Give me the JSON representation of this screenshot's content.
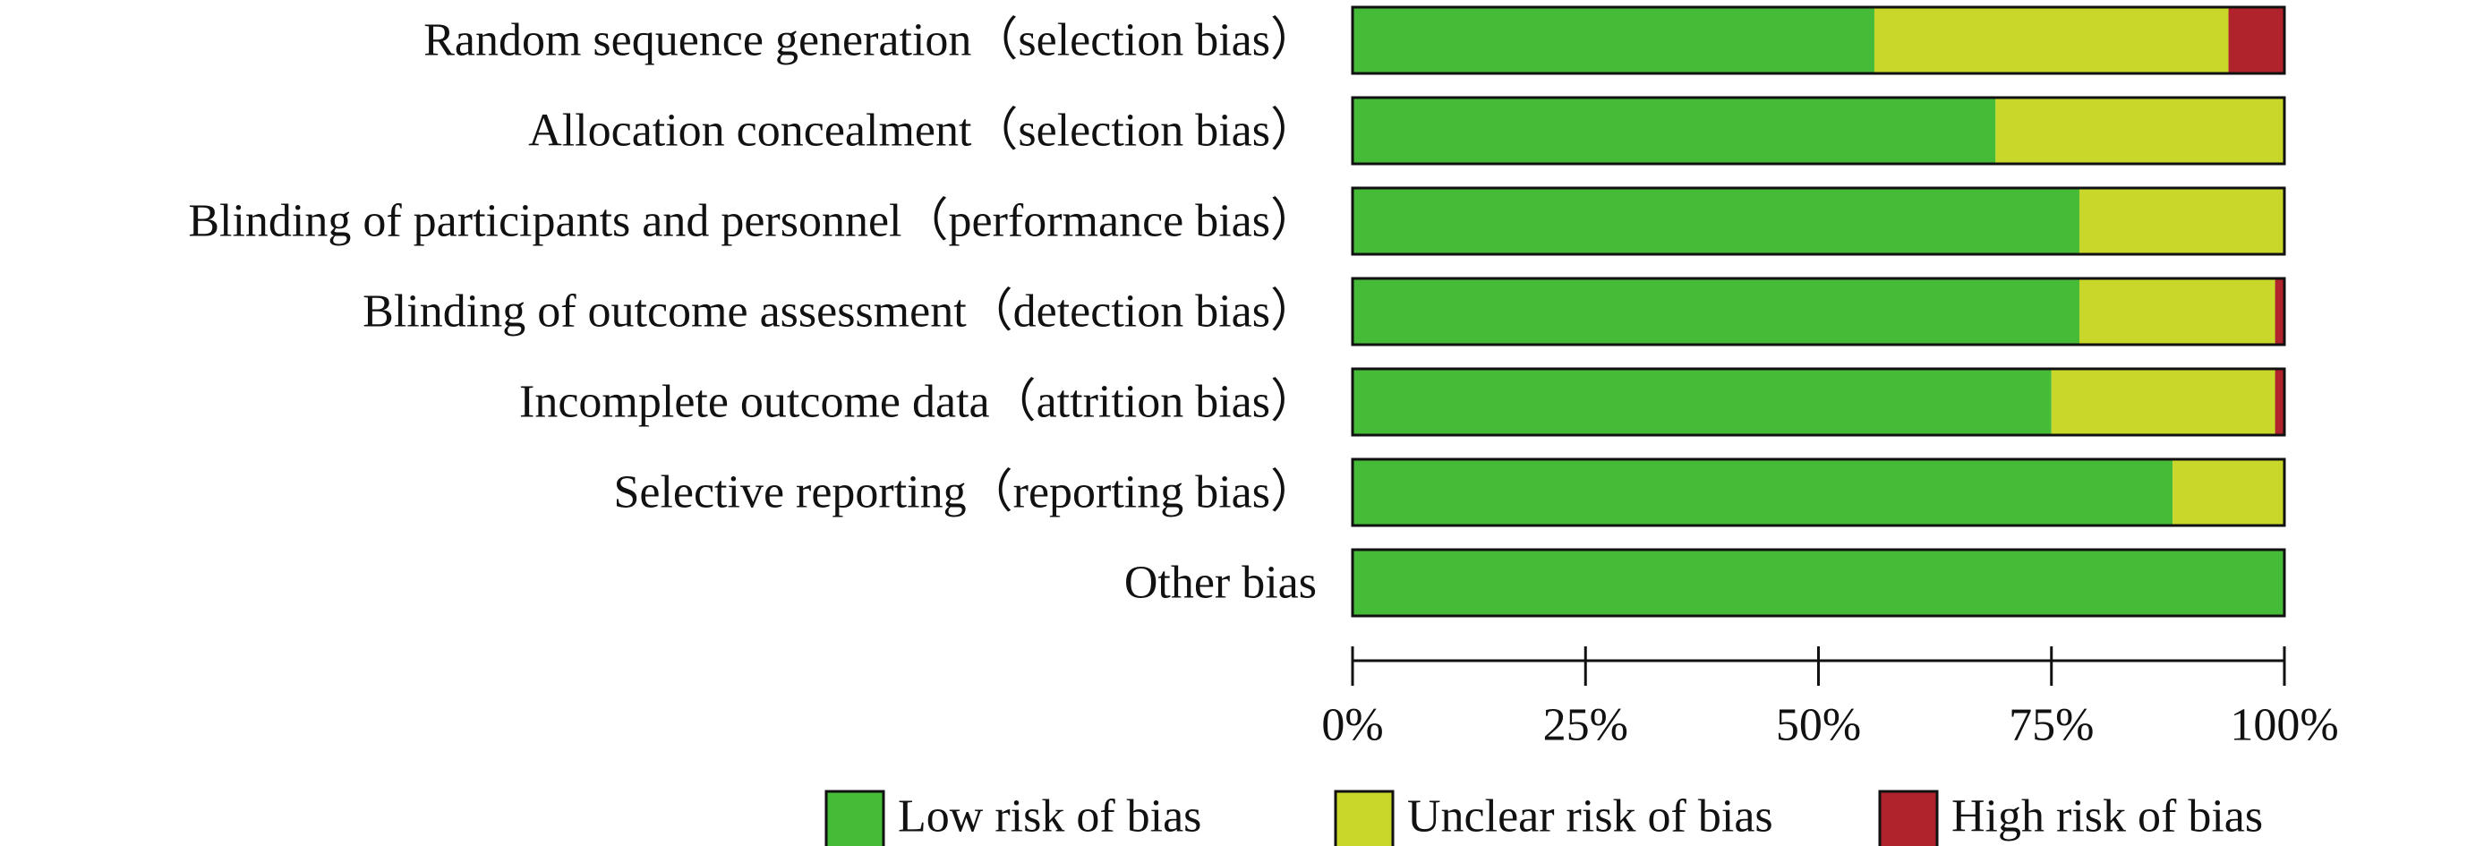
{
  "chart_data": {
    "type": "bar",
    "orientation": "horizontal",
    "stacked": true,
    "categories": [
      "Random sequence generation（selection bias）",
      "Allocation concealment（selection bias）",
      "Blinding of participants and personnel（performance bias）",
      "Blinding of outcome assessment（detection bias）",
      "Incomplete outcome data（attrition bias）",
      "Selective reporting（reporting bias）",
      "Other bias"
    ],
    "series": [
      {
        "name": "Low risk of bias",
        "color": "#45bb38",
        "values": [
          56,
          69,
          78,
          78,
          75,
          88,
          100
        ]
      },
      {
        "name": "Unclear risk of bias",
        "color": "#c9d72b",
        "values": [
          38,
          31,
          22,
          21,
          24,
          12,
          0
        ]
      },
      {
        "name": "High risk of bias",
        "color": "#b1232c",
        "values": [
          6,
          0,
          0,
          1,
          1,
          0,
          0
        ]
      }
    ],
    "xlim": [
      0,
      100
    ],
    "xticks": [
      0,
      25,
      50,
      75,
      100
    ],
    "xtick_labels": [
      "0%",
      "25%",
      "50%",
      "75%",
      "100%"
    ],
    "title": "",
    "xlabel": "",
    "ylabel": "",
    "grid": false,
    "legend_position": "bottom"
  }
}
